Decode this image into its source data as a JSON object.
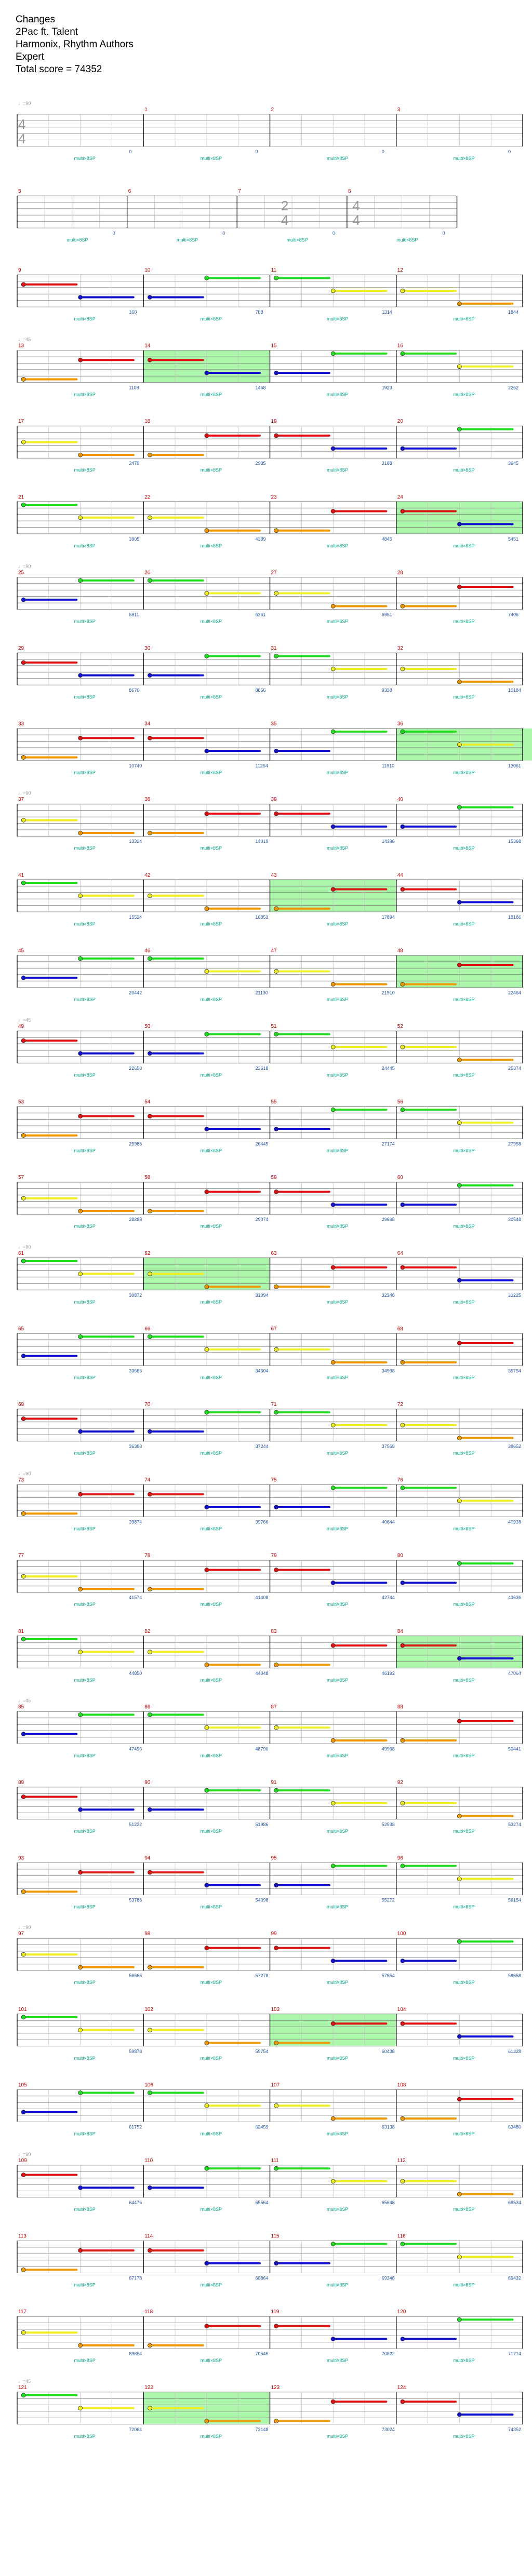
{
  "header": {
    "song": "Changes",
    "artist": "2Pac ft.  Talent",
    "charter": "Harmonix,  Rhythm Authors",
    "difficulty": "Expert",
    "total_score": "Total score = 74352"
  },
  "colors": {
    "green": "#22dd22",
    "red": "#dd1111",
    "yellow": "#eeee22",
    "blue": "#1111cc",
    "orange": "#ee9900",
    "sp_highlight": "#9df59d",
    "measure_number": "#cc0000",
    "score": "#2255aa",
    "multiplier": "#00aa88",
    "tempo": "#999999"
  },
  "chart_data": {
    "type": "note-chart",
    "time_signatures": [
      "4/4",
      "2/4",
      "4/4"
    ],
    "tempo_markers": [
      "♩=90",
      "♩=45",
      "♩=90",
      "♩=45",
      "♩=90",
      "♩=45",
      "♩=90",
      "♩=45",
      "♩=90"
    ],
    "multiplier_label": "multi×8SP",
    "rows": [
      {
        "measures": [
          "",
          "1",
          "2",
          "3"
        ],
        "scores": [
          "0",
          "0",
          "0",
          "0"
        ]
      },
      {
        "measures": [
          "5",
          "6",
          "7",
          "8"
        ],
        "scores": [
          "0",
          "0",
          "0",
          "0"
        ]
      },
      {
        "measures": [
          "9",
          "10",
          "11",
          "12"
        ],
        "scores": [
          "160",
          "788",
          "1314",
          "1844"
        ]
      },
      {
        "measures": [
          "13",
          "14",
          "15",
          "16"
        ],
        "scores": [
          "1108",
          "1458",
          "1923",
          "2262"
        ]
      },
      {
        "measures": [
          "17",
          "18",
          "19",
          "20"
        ],
        "scores": [
          "2479",
          "2935",
          "3188",
          "3645"
        ]
      },
      {
        "measures": [
          "21",
          "22",
          "23",
          "24"
        ],
        "scores": [
          "3905",
          "4389",
          "4845",
          "5451"
        ]
      },
      {
        "measures": [
          "25",
          "26",
          "27",
          "28"
        ],
        "scores": [
          "5911",
          "6361",
          "6951",
          "7408"
        ]
      },
      {
        "measures": [
          "29",
          "30",
          "31",
          "32"
        ],
        "scores": [
          "8676",
          "8856",
          "9338",
          "10184"
        ]
      },
      {
        "measures": [
          "33",
          "34",
          "35",
          "36"
        ],
        "scores": [
          "10740",
          "11254",
          "11910",
          "13061"
        ]
      },
      {
        "measures": [
          "37",
          "38",
          "39",
          "40"
        ],
        "scores": [
          "13324",
          "14019",
          "14396",
          "15368"
        ]
      },
      {
        "measures": [
          "41",
          "42",
          "43",
          "44"
        ],
        "scores": [
          "15524",
          "16853",
          "17894",
          "18186"
        ]
      },
      {
        "measures": [
          "45",
          "46",
          "47",
          "48"
        ],
        "scores": [
          "20442",
          "21130",
          "21910",
          "22464"
        ]
      },
      {
        "measures": [
          "49",
          "50",
          "51",
          "52"
        ],
        "scores": [
          "22658",
          "23618",
          "24445",
          "25374"
        ]
      },
      {
        "measures": [
          "53",
          "54",
          "55",
          "56"
        ],
        "scores": [
          "25986",
          "26445",
          "27174",
          "27958"
        ]
      },
      {
        "measures": [
          "57",
          "58",
          "59",
          "60"
        ],
        "scores": [
          "28288",
          "29074",
          "29698",
          "30548"
        ]
      },
      {
        "measures": [
          "61",
          "62",
          "63",
          "64"
        ],
        "scores": [
          "30872",
          "31094",
          "32348",
          "33225"
        ]
      },
      {
        "measures": [
          "65",
          "66",
          "67",
          "68"
        ],
        "scores": [
          "33686",
          "34504",
          "34998",
          "35754"
        ]
      },
      {
        "measures": [
          "69",
          "70",
          "71",
          "72"
        ],
        "scores": [
          "36388",
          "37244",
          "37568",
          "38652"
        ]
      },
      {
        "measures": [
          "73",
          "74",
          "75",
          "76"
        ],
        "scores": [
          "39874",
          "39766",
          "40644",
          "40938"
        ]
      },
      {
        "measures": [
          "77",
          "78",
          "79",
          "80"
        ],
        "scores": [
          "41574",
          "41408",
          "42744",
          "43636"
        ]
      },
      {
        "measures": [
          "81",
          "82",
          "83",
          "84"
        ],
        "scores": [
          "44850",
          "44048",
          "46192",
          "47064"
        ]
      },
      {
        "measures": [
          "85",
          "86",
          "87",
          "88"
        ],
        "scores": [
          "47496",
          "48790",
          "49968",
          "50441"
        ]
      },
      {
        "measures": [
          "89",
          "90",
          "91",
          "92"
        ],
        "scores": [
          "51222",
          "51986",
          "52598",
          "53274"
        ]
      },
      {
        "measures": [
          "93",
          "94",
          "95",
          "96"
        ],
        "scores": [
          "53786",
          "54098",
          "55272",
          "56154"
        ]
      },
      {
        "measures": [
          "97",
          "98",
          "99",
          "100"
        ],
        "scores": [
          "56566",
          "57278",
          "57854",
          "58658"
        ]
      },
      {
        "measures": [
          "101",
          "102",
          "103",
          "104"
        ],
        "scores": [
          "59878",
          "59754",
          "60438",
          "61328"
        ]
      },
      {
        "measures": [
          "105",
          "106",
          "107",
          "108"
        ],
        "scores": [
          "61752",
          "62459",
          "63138",
          "63480"
        ]
      },
      {
        "measures": [
          "109",
          "110",
          "111",
          "112"
        ],
        "scores": [
          "64476",
          "65564",
          "65648",
          "68534"
        ]
      },
      {
        "measures": [
          "113",
          "114",
          "115",
          "116"
        ],
        "scores": [
          "67178",
          "68864",
          "69348",
          "69432"
        ]
      },
      {
        "measures": [
          "117",
          "118",
          "119",
          "120"
        ],
        "scores": [
          "69654",
          "70546",
          "70822",
          "71714"
        ]
      },
      {
        "measures": [
          "121",
          "122",
          "123",
          "124"
        ],
        "scores": [
          "72064",
          "72148",
          "73024",
          "74352"
        ]
      }
    ]
  }
}
